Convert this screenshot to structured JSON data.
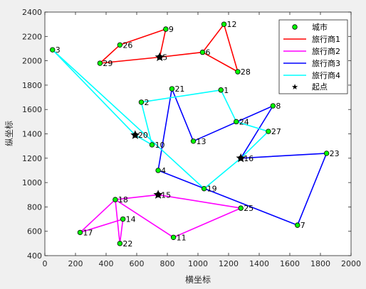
{
  "chart_data": {
    "type": "line",
    "xlabel": "横坐标",
    "ylabel": "纵坐标",
    "xlim": [
      0,
      2000
    ],
    "ylim": [
      400,
      2400
    ],
    "xticks": [
      0,
      200,
      400,
      600,
      800,
      1000,
      1200,
      1400,
      1600,
      1800,
      2000
    ],
    "yticks": [
      400,
      600,
      800,
      1000,
      1200,
      1400,
      1600,
      1800,
      2000,
      2200,
      2400
    ],
    "grid": false,
    "legend_position": "top-right",
    "cities": [
      {
        "id": "1",
        "x": 1150,
        "y": 1760
      },
      {
        "id": "2",
        "x": 630,
        "y": 1660
      },
      {
        "id": "3",
        "x": 50,
        "y": 2090
      },
      {
        "id": "4",
        "x": 740,
        "y": 1100
      },
      {
        "id": "5",
        "x": 750,
        "y": 2030
      },
      {
        "id": "6",
        "x": 1030,
        "y": 2070
      },
      {
        "id": "7",
        "x": 1650,
        "y": 650
      },
      {
        "id": "8",
        "x": 1490,
        "y": 1630
      },
      {
        "id": "9",
        "x": 790,
        "y": 2260
      },
      {
        "id": "10",
        "x": 700,
        "y": 1310
      },
      {
        "id": "11",
        "x": 840,
        "y": 550
      },
      {
        "id": "12",
        "x": 1170,
        "y": 2300
      },
      {
        "id": "13",
        "x": 970,
        "y": 1340
      },
      {
        "id": "14",
        "x": 510,
        "y": 700
      },
      {
        "id": "15",
        "x": 740,
        "y": 900
      },
      {
        "id": "16",
        "x": 1280,
        "y": 1200
      },
      {
        "id": "17",
        "x": 230,
        "y": 590
      },
      {
        "id": "18",
        "x": 460,
        "y": 860
      },
      {
        "id": "19",
        "x": 1040,
        "y": 950
      },
      {
        "id": "20",
        "x": 590,
        "y": 1390
      },
      {
        "id": "21",
        "x": 830,
        "y": 1770
      },
      {
        "id": "22",
        "x": 490,
        "y": 500
      },
      {
        "id": "23",
        "x": 1840,
        "y": 1240
      },
      {
        "id": "24",
        "x": 1250,
        "y": 1500
      },
      {
        "id": "25",
        "x": 1280,
        "y": 790
      },
      {
        "id": "26",
        "x": 490,
        "y": 2130
      },
      {
        "id": "27",
        "x": 1460,
        "y": 1420
      },
      {
        "id": "28",
        "x": 1260,
        "y": 1910
      },
      {
        "id": "29",
        "x": 360,
        "y": 1980
      }
    ],
    "series": [
      {
        "name": "旅行商1",
        "color": "#ff0000",
        "route": [
          "5",
          "9",
          "26",
          "29",
          "5",
          "6",
          "12",
          "28",
          "6",
          "5"
        ]
      },
      {
        "name": "旅行商2",
        "color": "#ff00ff",
        "route": [
          "15",
          "25",
          "11",
          "18",
          "17",
          "14",
          "22",
          "18",
          "15"
        ]
      },
      {
        "name": "旅行商3",
        "color": "#0000ff",
        "route": [
          "16",
          "8",
          "13",
          "21",
          "4",
          "7",
          "23",
          "16"
        ]
      },
      {
        "name": "旅行商4",
        "color": "#00ffff",
        "route": [
          "20",
          "3",
          "19",
          "16",
          "27",
          "24",
          "1",
          "2",
          "10",
          "20"
        ]
      }
    ],
    "depots": [
      {
        "label": "20",
        "x": 590,
        "y": 1390
      },
      {
        "label": "5",
        "x": 750,
        "y": 2030
      },
      {
        "label": "15",
        "x": 740,
        "y": 900
      },
      {
        "label": "16",
        "x": 1280,
        "y": 1200
      }
    ],
    "legend": {
      "city": "城市",
      "salesman1": "旅行商1",
      "salesman2": "旅行商2",
      "salesman3": "旅行商3",
      "salesman4": "旅行商4",
      "start": "起点"
    },
    "colors": {
      "city_fill": "#00ff00",
      "city_edge": "#000000",
      "star": "#000000",
      "axes_bg": "#ffffff",
      "figure_bg": "#f0f0f0"
    }
  }
}
